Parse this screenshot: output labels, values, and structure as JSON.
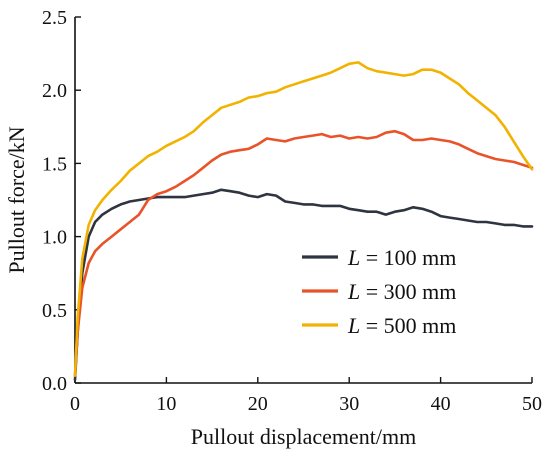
{
  "chart_data": {
    "type": "line",
    "title": "",
    "xlabel": "Pullout displacement/mm",
    "ylabel": "Pullout force/kN",
    "xlim": [
      0,
      50
    ],
    "ylim": [
      0,
      2.5
    ],
    "x_ticks": [
      "0",
      "10",
      "20",
      "30",
      "40",
      "50"
    ],
    "y_ticks": [
      "0.0",
      "0.5",
      "1.0",
      "1.5",
      "2.0",
      "2.5"
    ],
    "grid": false,
    "legend_position": "lower-right",
    "series": [
      {
        "name": "L = 100 mm",
        "legend_symbol": "L",
        "legend_rest": " = 100 mm",
        "color": "#2e3440",
        "x": [
          0,
          0.3,
          0.8,
          1.5,
          2.2,
          3,
          4,
          5,
          6,
          7,
          8,
          9,
          10,
          11,
          12,
          13,
          14,
          15,
          16,
          17,
          18,
          19,
          20,
          21,
          22,
          23,
          24,
          25,
          26,
          27,
          28,
          29,
          30,
          31,
          32,
          33,
          34,
          35,
          36,
          37,
          38,
          39,
          40,
          41,
          42,
          43,
          44,
          45,
          46,
          47,
          48,
          49,
          50
        ],
        "y": [
          0.02,
          0.35,
          0.75,
          1.0,
          1.1,
          1.15,
          1.19,
          1.22,
          1.24,
          1.25,
          1.26,
          1.27,
          1.27,
          1.27,
          1.27,
          1.28,
          1.29,
          1.3,
          1.32,
          1.31,
          1.3,
          1.28,
          1.27,
          1.29,
          1.28,
          1.24,
          1.23,
          1.22,
          1.22,
          1.21,
          1.21,
          1.21,
          1.19,
          1.18,
          1.17,
          1.17,
          1.15,
          1.17,
          1.18,
          1.2,
          1.19,
          1.17,
          1.14,
          1.13,
          1.12,
          1.11,
          1.1,
          1.1,
          1.09,
          1.08,
          1.08,
          1.07,
          1.07
        ]
      },
      {
        "name": "L = 300 mm",
        "legend_symbol": "L",
        "legend_rest": " = 300 mm",
        "color": "#e8532a",
        "x": [
          0,
          0.3,
          0.8,
          1.5,
          2.2,
          3,
          4,
          5,
          6,
          7,
          8,
          9,
          10,
          11,
          12,
          13,
          14,
          15,
          16,
          17,
          18,
          19,
          20,
          21,
          22,
          23,
          24,
          25,
          26,
          27,
          28,
          29,
          30,
          31,
          32,
          33,
          34,
          35,
          36,
          37,
          38,
          39,
          40,
          41,
          42,
          43,
          44,
          45,
          46,
          47,
          48,
          49,
          50
        ],
        "y": [
          0.05,
          0.35,
          0.65,
          0.82,
          0.9,
          0.95,
          1.0,
          1.05,
          1.1,
          1.15,
          1.25,
          1.29,
          1.31,
          1.34,
          1.38,
          1.42,
          1.47,
          1.52,
          1.56,
          1.58,
          1.59,
          1.6,
          1.63,
          1.67,
          1.66,
          1.65,
          1.67,
          1.68,
          1.69,
          1.7,
          1.68,
          1.69,
          1.67,
          1.68,
          1.67,
          1.68,
          1.71,
          1.72,
          1.7,
          1.66,
          1.66,
          1.67,
          1.66,
          1.65,
          1.63,
          1.6,
          1.57,
          1.55,
          1.53,
          1.52,
          1.51,
          1.49,
          1.47
        ]
      },
      {
        "name": "L = 500 mm",
        "legend_symbol": "L",
        "legend_rest": " = 500 mm",
        "color": "#f2b200",
        "x": [
          0,
          0.3,
          0.8,
          1.5,
          2.2,
          3,
          4,
          5,
          6,
          7,
          8,
          9,
          10,
          11,
          12,
          13,
          14,
          15,
          16,
          17,
          18,
          19,
          20,
          21,
          22,
          23,
          24,
          25,
          26,
          27,
          28,
          29,
          30,
          31,
          32,
          33,
          34,
          35,
          36,
          37,
          38,
          39,
          40,
          41,
          42,
          43,
          44,
          45,
          46,
          47,
          48,
          49,
          50
        ],
        "y": [
          0.05,
          0.45,
          0.85,
          1.08,
          1.18,
          1.25,
          1.32,
          1.38,
          1.45,
          1.5,
          1.55,
          1.58,
          1.62,
          1.65,
          1.68,
          1.72,
          1.78,
          1.83,
          1.88,
          1.9,
          1.92,
          1.95,
          1.96,
          1.98,
          1.99,
          2.02,
          2.04,
          2.06,
          2.08,
          2.1,
          2.12,
          2.15,
          2.18,
          2.19,
          2.15,
          2.13,
          2.12,
          2.11,
          2.1,
          2.11,
          2.14,
          2.14,
          2.12,
          2.08,
          2.04,
          1.98,
          1.93,
          1.88,
          1.83,
          1.75,
          1.65,
          1.55,
          1.46
        ]
      }
    ]
  }
}
